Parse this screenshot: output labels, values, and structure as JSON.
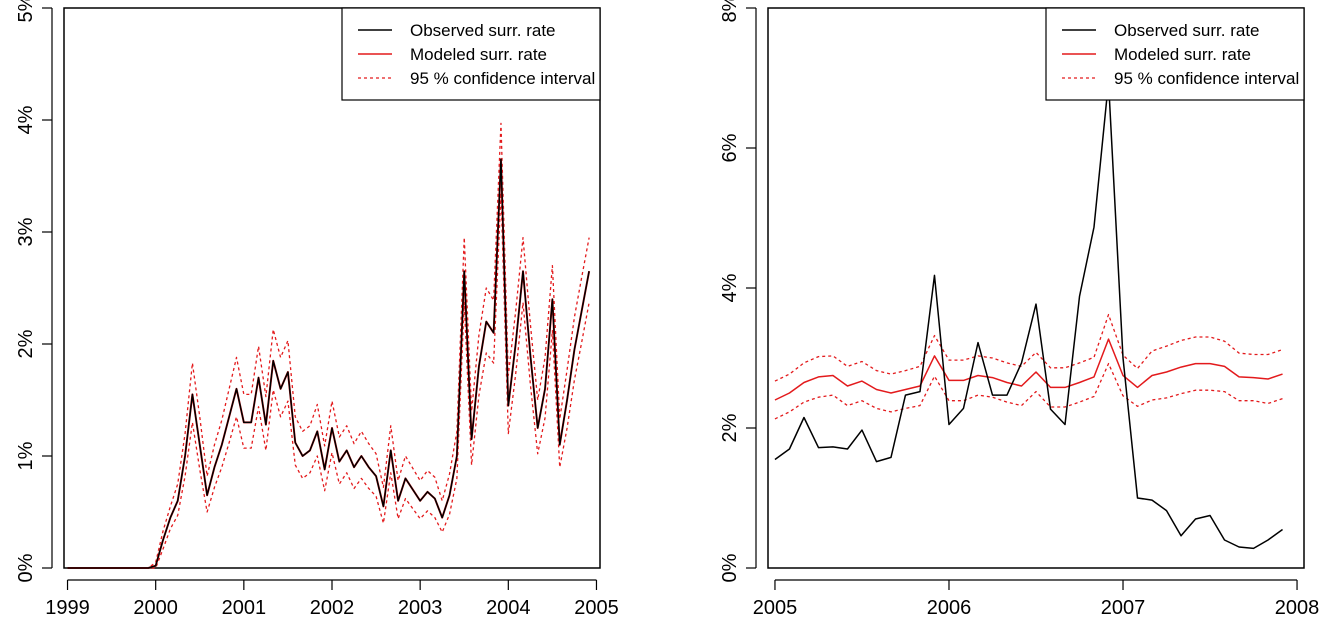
{
  "chart_data": [
    {
      "type": "line",
      "xlim": [
        1998.96,
        2005.04
      ],
      "ylim": [
        0,
        5
      ],
      "x_ticks": [
        1999,
        2000,
        2001,
        2002,
        2003,
        2004,
        2005
      ],
      "x_tick_labels": [
        "1999",
        "2000",
        "2001",
        "2002",
        "2003",
        "2004",
        "2005"
      ],
      "y_ticks": [
        0,
        1,
        2,
        3,
        4,
        5
      ],
      "y_tick_labels": [
        "0%",
        "1%",
        "2%",
        "3%",
        "4%",
        "5%"
      ],
      "legend": {
        "position": "top-right",
        "entries": [
          {
            "label": "Observed surr. rate",
            "color": "#000000",
            "style": "solid"
          },
          {
            "label": "Modeled surr. rate",
            "color": "#e31a1c",
            "style": "solid"
          },
          {
            "label": "95 % confidence interval",
            "color": "#e31a1c",
            "style": "dotted"
          }
        ]
      },
      "x": [
        1999.0,
        1999.0833,
        1999.1667,
        1999.25,
        1999.3333,
        1999.4167,
        1999.5,
        1999.5833,
        1999.6667,
        1999.75,
        1999.8333,
        1999.9167,
        2000.0,
        2000.0833,
        2000.1667,
        2000.25,
        2000.3333,
        2000.4167,
        2000.5,
        2000.5833,
        2000.6667,
        2000.75,
        2000.8333,
        2000.9167,
        2001.0,
        2001.0833,
        2001.1667,
        2001.25,
        2001.3333,
        2001.4167,
        2001.5,
        2001.5833,
        2001.6667,
        2001.75,
        2001.8333,
        2001.9167,
        2002.0,
        2002.0833,
        2002.1667,
        2002.25,
        2002.3333,
        2002.4167,
        2002.5,
        2002.5833,
        2002.6667,
        2002.75,
        2002.8333,
        2002.9167,
        2003.0,
        2003.0833,
        2003.1667,
        2003.25,
        2003.3333,
        2003.4167,
        2003.5,
        2003.5833,
        2003.6667,
        2003.75,
        2003.8333,
        2003.9167,
        2004.0,
        2004.0833,
        2004.1667,
        2004.25,
        2004.3333,
        2004.4167,
        2004.5,
        2004.5833,
        2004.6667,
        2004.75,
        2004.8333,
        2004.9167
      ],
      "series": [
        {
          "name": "Observed surr. rate",
          "color": "#000000",
          "style": "solid",
          "values": [
            0,
            0,
            0,
            0,
            0,
            0,
            0,
            0,
            0,
            0,
            0,
            0,
            0.02,
            0.25,
            0.45,
            0.6,
            1.0,
            1.55,
            1.1,
            0.65,
            0.9,
            1.1,
            1.35,
            1.6,
            1.3,
            1.3,
            1.7,
            1.28,
            1.85,
            1.6,
            1.75,
            1.12,
            1.0,
            1.05,
            1.22,
            0.88,
            1.25,
            0.95,
            1.05,
            0.9,
            1.0,
            0.9,
            0.82,
            0.55,
            1.05,
            0.6,
            0.8,
            0.7,
            0.6,
            0.68,
            0.62,
            0.45,
            0.65,
            1.0,
            2.65,
            1.15,
            1.8,
            2.2,
            2.1,
            3.65,
            1.45,
            2.0,
            2.65,
            1.9,
            1.25,
            1.6,
            2.4,
            1.1,
            1.5,
            1.95,
            2.3,
            2.65
          ]
        },
        {
          "name": "Modeled surr. rate",
          "color": "#e31a1c",
          "style": "solid",
          "values": [
            0,
            0,
            0,
            0,
            0,
            0,
            0,
            0,
            0,
            0,
            0,
            0,
            0.02,
            0.25,
            0.45,
            0.6,
            1.0,
            1.55,
            1.1,
            0.65,
            0.9,
            1.1,
            1.35,
            1.6,
            1.3,
            1.3,
            1.7,
            1.28,
            1.85,
            1.6,
            1.75,
            1.12,
            1.0,
            1.05,
            1.22,
            0.88,
            1.25,
            0.95,
            1.05,
            0.9,
            1.0,
            0.9,
            0.82,
            0.55,
            1.05,
            0.6,
            0.8,
            0.7,
            0.6,
            0.68,
            0.62,
            0.45,
            0.65,
            1.0,
            2.65,
            1.15,
            1.8,
            2.2,
            2.1,
            3.65,
            1.45,
            2.0,
            2.65,
            1.9,
            1.25,
            1.6,
            2.4,
            1.1,
            1.5,
            1.95,
            2.3,
            2.65
          ]
        },
        {
          "name": "95 % confidence interval (upper)",
          "color": "#e31a1c",
          "style": "dotted",
          "values": [
            0,
            0,
            0,
            0,
            0,
            0,
            0,
            0,
            0,
            0,
            0,
            0,
            0.05,
            0.33,
            0.55,
            0.75,
            1.2,
            1.83,
            1.35,
            0.82,
            1.1,
            1.32,
            1.6,
            1.88,
            1.55,
            1.55,
            1.98,
            1.53,
            2.13,
            1.88,
            2.03,
            1.35,
            1.22,
            1.27,
            1.46,
            1.09,
            1.49,
            1.17,
            1.27,
            1.11,
            1.22,
            1.11,
            1.02,
            0.72,
            1.27,
            0.78,
            1.0,
            0.89,
            0.78,
            0.87,
            0.81,
            0.6,
            0.84,
            1.22,
            2.95,
            1.4,
            2.08,
            2.5,
            2.39,
            3.97,
            1.72,
            2.29,
            2.95,
            2.18,
            1.5,
            1.88,
            2.7,
            1.33,
            1.77,
            2.24,
            2.6,
            2.95
          ]
        },
        {
          "name": "95 % confidence interval (lower)",
          "color": "#e31a1c",
          "style": "dotted",
          "values": [
            0,
            0,
            0,
            0,
            0,
            0,
            0,
            0,
            0,
            0,
            0,
            0,
            0,
            0.17,
            0.35,
            0.47,
            0.82,
            1.3,
            0.88,
            0.5,
            0.72,
            0.9,
            1.12,
            1.35,
            1.07,
            1.07,
            1.44,
            1.05,
            1.59,
            1.35,
            1.49,
            0.92,
            0.8,
            0.85,
            1.0,
            0.69,
            1.03,
            0.75,
            0.85,
            0.71,
            0.8,
            0.71,
            0.64,
            0.4,
            0.85,
            0.44,
            0.62,
            0.53,
            0.44,
            0.51,
            0.45,
            0.32,
            0.48,
            0.8,
            2.37,
            0.92,
            1.54,
            1.92,
            1.83,
            3.35,
            1.2,
            1.73,
            2.37,
            1.64,
            1.02,
            1.34,
            2.12,
            0.9,
            1.25,
            1.68,
            2.02,
            2.37
          ]
        }
      ]
    },
    {
      "type": "line",
      "xlim": [
        2004.96,
        2008.04
      ],
      "ylim": [
        0,
        8
      ],
      "x_ticks": [
        2005,
        2006,
        2007,
        2008
      ],
      "x_tick_labels": [
        "2005",
        "2006",
        "2007",
        "2008"
      ],
      "y_ticks": [
        0,
        2,
        4,
        6,
        8
      ],
      "y_tick_labels": [
        "0%",
        "2%",
        "4%",
        "6%",
        "8%"
      ],
      "legend": {
        "position": "top-right",
        "entries": [
          {
            "label": "Observed surr. rate",
            "color": "#000000",
            "style": "solid"
          },
          {
            "label": "Modeled surr. rate",
            "color": "#e31a1c",
            "style": "solid"
          },
          {
            "label": "95 % confidence interval",
            "color": "#e31a1c",
            "style": "dotted"
          }
        ]
      },
      "x": [
        2005.0,
        2005.0833,
        2005.1667,
        2005.25,
        2005.3333,
        2005.4167,
        2005.5,
        2005.5833,
        2005.6667,
        2005.75,
        2005.8333,
        2005.9167,
        2006.0,
        2006.0833,
        2006.1667,
        2006.25,
        2006.3333,
        2006.4167,
        2006.5,
        2006.5833,
        2006.6667,
        2006.75,
        2006.8333,
        2006.9167,
        2007.0,
        2007.0833,
        2007.1667,
        2007.25,
        2007.3333,
        2007.4167,
        2007.5,
        2007.5833,
        2007.6667,
        2007.75,
        2007.8333,
        2007.9167
      ],
      "series": [
        {
          "name": "Observed surr. rate",
          "color": "#000000",
          "style": "solid",
          "values": [
            1.55,
            1.7,
            2.15,
            1.72,
            1.73,
            1.7,
            1.97,
            1.52,
            1.58,
            2.47,
            2.52,
            4.18,
            2.05,
            2.28,
            3.22,
            2.47,
            2.47,
            2.93,
            3.77,
            2.27,
            2.05,
            3.88,
            4.87,
            6.95,
            3.0,
            1.0,
            0.97,
            0.82,
            0.46,
            0.7,
            0.75,
            0.4,
            0.3,
            0.28,
            0.4,
            0.55
          ]
        },
        {
          "name": "Modeled surr. rate",
          "color": "#e31a1c",
          "style": "solid",
          "values": [
            2.4,
            2.5,
            2.65,
            2.73,
            2.75,
            2.6,
            2.67,
            2.55,
            2.5,
            2.55,
            2.6,
            3.03,
            2.68,
            2.68,
            2.75,
            2.72,
            2.65,
            2.6,
            2.8,
            2.58,
            2.58,
            2.65,
            2.73,
            3.27,
            2.75,
            2.58,
            2.75,
            2.8,
            2.87,
            2.92,
            2.92,
            2.88,
            2.73,
            2.72,
            2.7,
            2.77
          ]
        },
        {
          "name": "95 % confidence interval (upper)",
          "color": "#e31a1c",
          "style": "dotted",
          "values": [
            2.67,
            2.77,
            2.93,
            3.02,
            3.03,
            2.88,
            2.95,
            2.82,
            2.77,
            2.82,
            2.88,
            3.32,
            2.97,
            2.97,
            3.03,
            3.0,
            2.93,
            2.88,
            3.08,
            2.86,
            2.86,
            2.93,
            3.01,
            3.62,
            3.04,
            2.85,
            3.1,
            3.17,
            3.25,
            3.3,
            3.3,
            3.24,
            3.07,
            3.05,
            3.05,
            3.12
          ]
        },
        {
          "name": "95 % confidence interval (lower)",
          "color": "#e31a1c",
          "style": "dotted",
          "values": [
            2.13,
            2.23,
            2.37,
            2.44,
            2.47,
            2.32,
            2.39,
            2.28,
            2.23,
            2.28,
            2.32,
            2.74,
            2.39,
            2.39,
            2.47,
            2.44,
            2.37,
            2.32,
            2.52,
            2.3,
            2.3,
            2.37,
            2.45,
            2.92,
            2.46,
            2.31,
            2.4,
            2.43,
            2.49,
            2.54,
            2.54,
            2.52,
            2.39,
            2.39,
            2.35,
            2.42
          ]
        }
      ]
    }
  ]
}
